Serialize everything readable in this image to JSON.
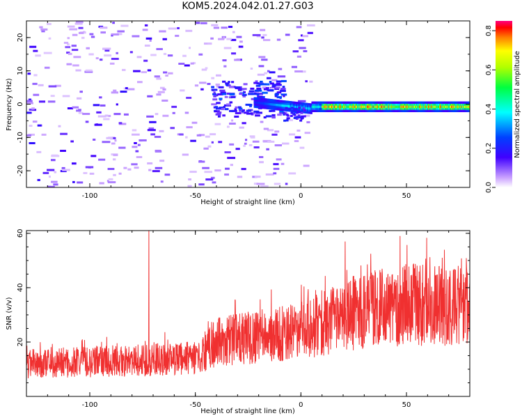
{
  "title": "KOM5.2024.042.01.27.G03",
  "chart_data": [
    {
      "type": "heatmap",
      "xlabel": "Height of straight line (km)",
      "ylabel": "Frequency (Hz)",
      "xlim": [
        -130,
        80
      ],
      "ylim": [
        -25,
        25
      ],
      "xticks": [
        -100,
        -50,
        0,
        50
      ],
      "yticks": [
        -20,
        -10,
        0,
        10,
        20
      ],
      "colorbar": {
        "label": "Normalized spectral amplitude",
        "range": [
          0.0,
          0.85
        ],
        "ticks": [
          0.0,
          0.2,
          0.4,
          0.6,
          0.8
        ],
        "tick_labels": [
          "0.0",
          "0.2",
          "0.4",
          "0.6",
          "0.8"
        ]
      },
      "description_points": [
        {
          "x": -20,
          "y": 0.5,
          "value": 0.35
        },
        {
          "x": -10,
          "y": 0,
          "value": 0.45
        },
        {
          "x": 0,
          "y": -1.5,
          "value": 0.4
        },
        {
          "x": 10,
          "y": -0.5,
          "value": 0.6
        },
        {
          "x": 25,
          "y": 0,
          "value": 0.75
        },
        {
          "x": 40,
          "y": -0.5,
          "value": 0.8
        },
        {
          "x": 55,
          "y": -0.8,
          "value": 0.8
        },
        {
          "x": 70,
          "y": -1,
          "value": 0.8
        }
      ]
    },
    {
      "type": "line",
      "xlabel": "Height of straight line (km)",
      "ylabel": "SNR (v/v)",
      "xlim": [
        -130,
        80
      ],
      "ylim": [
        0,
        61
      ],
      "xticks": [
        -100,
        -50,
        0,
        50
      ],
      "yticks": [
        20,
        40,
        60
      ],
      "color": "#f03030",
      "trend": {
        "x": [
          -130,
          -50,
          -40,
          0,
          20,
          50,
          80
        ],
        "y": [
          12,
          14,
          20,
          24,
          30,
          34,
          33
        ]
      },
      "peaks": [
        {
          "x": -72,
          "y": 61
        },
        {
          "x": 47,
          "y": 59
        },
        {
          "x": 21,
          "y": 57
        }
      ]
    }
  ]
}
